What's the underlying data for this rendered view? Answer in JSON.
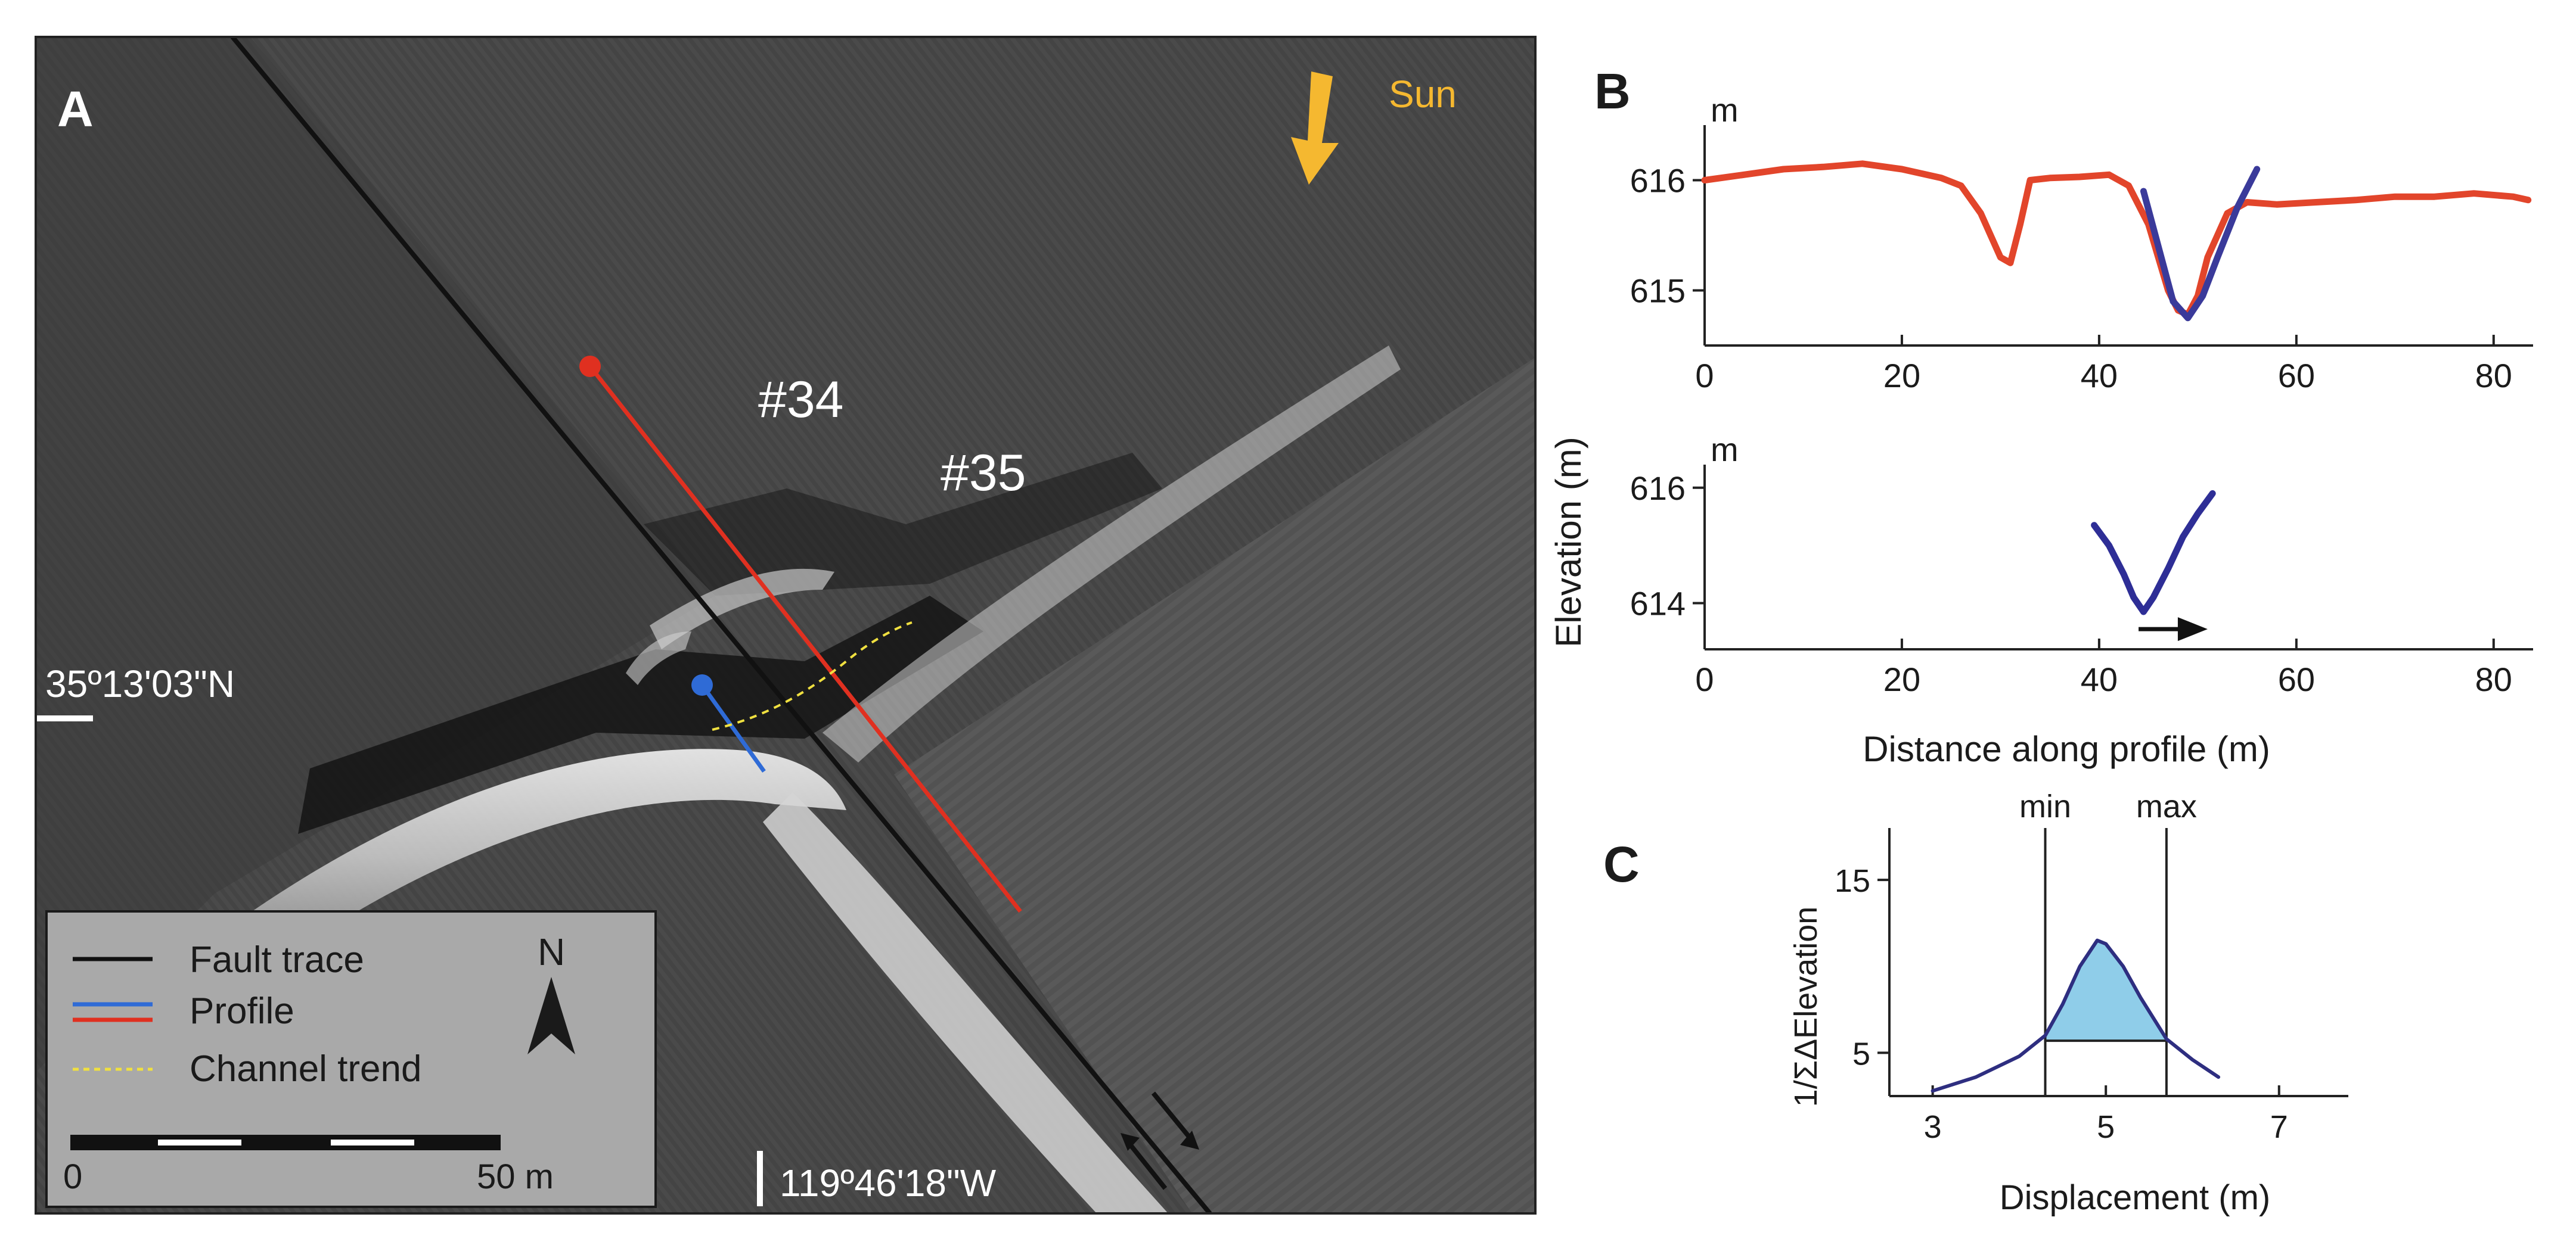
{
  "panel_a": {
    "panel_letter": "A",
    "sun_label": "Sun",
    "channel_labels": [
      "#34",
      "#35"
    ],
    "latitude_label": "35º13'03\"N",
    "longitude_label": "119º46'18\"W",
    "north_label": "N",
    "legend": {
      "fault_trace": "Fault trace",
      "profile": "Profile",
      "channel_trend": "Channel trend"
    },
    "scale_start": "0",
    "scale_end": "50 m",
    "colors": {
      "fault": "#111111",
      "profile_red": "#e03020",
      "profile_blue": "#2f6bd6",
      "channel_trend": "#f0e040",
      "sun_arrow": "#f5b830"
    }
  },
  "chart_data": [
    {
      "id": "B-top",
      "panel_letter": "B",
      "type": "line",
      "unit_label": "m",
      "xlim": [
        0,
        84
      ],
      "ylim": [
        614.5,
        616.5
      ],
      "xticks": [
        0,
        20,
        40,
        60,
        80
      ],
      "yticks": [
        615,
        616
      ],
      "series": [
        {
          "color": "#e2452b",
          "points": [
            [
              0,
              616.0
            ],
            [
              4,
              616.05
            ],
            [
              8,
              616.1
            ],
            [
              12,
              616.12
            ],
            [
              16,
              616.15
            ],
            [
              20,
              616.1
            ],
            [
              24,
              616.02
            ],
            [
              26,
              615.95
            ],
            [
              28,
              615.7
            ],
            [
              30,
              615.3
            ],
            [
              31,
              615.25
            ],
            [
              32,
              615.6
            ],
            [
              33,
              616.0
            ],
            [
              35,
              616.02
            ],
            [
              38,
              616.03
            ],
            [
              41,
              616.05
            ],
            [
              43,
              615.95
            ],
            [
              45,
              615.6
            ],
            [
              47,
              615.0
            ],
            [
              48,
              614.82
            ],
            [
              49,
              614.78
            ],
            [
              50,
              614.95
            ],
            [
              51,
              615.3
            ],
            [
              53,
              615.7
            ],
            [
              55,
              615.8
            ],
            [
              58,
              615.78
            ],
            [
              62,
              615.8
            ],
            [
              66,
              615.82
            ],
            [
              70,
              615.85
            ],
            [
              74,
              615.85
            ],
            [
              78,
              615.88
            ],
            [
              82,
              615.85
            ],
            [
              83.5,
              615.82
            ]
          ]
        },
        {
          "color": "#3a3a9a",
          "points": [
            [
              44.5,
              615.9
            ],
            [
              46,
              615.4
            ],
            [
              47.5,
              614.9
            ],
            [
              49,
              614.75
            ],
            [
              50.5,
              614.95
            ],
            [
              52,
              615.3
            ],
            [
              54,
              615.75
            ],
            [
              56,
              616.1
            ]
          ]
        }
      ]
    },
    {
      "id": "B-bottom",
      "type": "line",
      "unit_label": "m",
      "ylabel": "Elevation (m)",
      "xlabel": "Distance along profile (m)",
      "xlim": [
        0,
        84
      ],
      "ylim": [
        613.2,
        616.4
      ],
      "xticks": [
        0,
        20,
        40,
        60,
        80
      ],
      "yticks": [
        614,
        616
      ],
      "arrow": {
        "from_x": 44,
        "to_x": 51,
        "y": 613.55
      },
      "series": [
        {
          "color": "#2e2e96",
          "points": [
            [
              39.5,
              615.35
            ],
            [
              41,
              615.0
            ],
            [
              42.5,
              614.5
            ],
            [
              43.5,
              614.1
            ],
            [
              44.5,
              613.85
            ],
            [
              45.5,
              614.1
            ],
            [
              47,
              614.6
            ],
            [
              48.5,
              615.15
            ],
            [
              50,
              615.55
            ],
            [
              51.5,
              615.9
            ]
          ]
        }
      ]
    },
    {
      "id": "C",
      "panel_letter": "C",
      "type": "area",
      "ylabel": "1/ΣΔElevation",
      "xlabel": "Displacement (m)",
      "xlim": [
        2.5,
        7.8
      ],
      "ylim": [
        2.5,
        18
      ],
      "xticks": [
        3,
        5,
        7
      ],
      "yticks": [
        5,
        15
      ],
      "min_x": 4.3,
      "max_x": 5.7,
      "min_label": "min",
      "max_label": "max",
      "shaded_floor": 5.7,
      "series": [
        {
          "color": "#2e2e80",
          "fill": "#8fcde9",
          "points": [
            [
              3.0,
              2.8
            ],
            [
              3.5,
              3.6
            ],
            [
              4.0,
              4.8
            ],
            [
              4.3,
              6.0
            ],
            [
              4.5,
              7.8
            ],
            [
              4.7,
              10.0
            ],
            [
              4.9,
              11.5
            ],
            [
              5.0,
              11.3
            ],
            [
              5.2,
              10.0
            ],
            [
              5.4,
              8.2
            ],
            [
              5.7,
              5.8
            ],
            [
              6.0,
              4.6
            ],
            [
              6.3,
              3.6
            ]
          ]
        }
      ]
    }
  ]
}
